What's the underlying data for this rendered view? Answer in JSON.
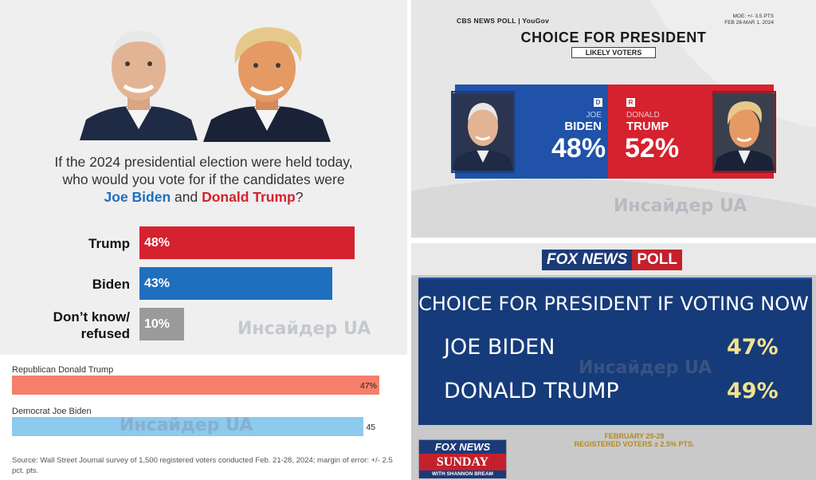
{
  "watermark": "Инсайдер UA",
  "colors": {
    "trump_red": "#d6212e",
    "biden_blue": "#1f6fbf",
    "undecided_gray": "#9a9a9a",
    "wsj_trump": "#f57f6a",
    "wsj_biden": "#8ec9ee",
    "cbs_blue": "#1f52a8",
    "cbs_red": "#d6212e",
    "fox_navy": "#163b7a",
    "fox_gold": "#f2e38f"
  },
  "icons": [
    "biden-portrait-icon",
    "trump-portrait-icon"
  ],
  "chart_data": [
    {
      "type": "bar",
      "question": {
        "line1": "If the 2024 presidential election were held today,",
        "line2": "who would you vote for if the candidates were",
        "biden": "Joe Biden",
        "and": "and",
        "trump": "Donald Trump",
        "qmark": "?"
      },
      "categories": [
        "Trump",
        "Biden",
        "Don’t know/\nrefused"
      ],
      "values": [
        48,
        43,
        10
      ],
      "value_labels": [
        "48%",
        "43%",
        "10%"
      ],
      "ylim": [
        0,
        50
      ]
    },
    {
      "type": "bar",
      "categories": [
        "Republican Donald Trump",
        "Democrat Joe Biden"
      ],
      "values": [
        47,
        45
      ],
      "value_labels": [
        "47%",
        "45"
      ],
      "xlim": [
        0,
        50
      ],
      "source": "Source: Wall Street Journal survey of 1,500 registered voters conducted Feb. 21-28, 2024; margin of error: +/- 2.5 pct. pts."
    },
    {
      "type": "bar",
      "brand": "CBS NEWS POLL | YouGov",
      "moe": "MOE: +/- 3.5 PTS",
      "dates": "FEB 28-MAR 1, 2024",
      "title": "CHOICE FOR PRESIDENT",
      "subtitle": "LIKELY VOTERS",
      "categories": [
        "JOE BIDEN",
        "DONALD TRUMP"
      ],
      "first_names": [
        "JOE",
        "DONALD"
      ],
      "last_names": [
        "BIDEN",
        "TRUMP"
      ],
      "parties": [
        "D",
        "R"
      ],
      "values": [
        48,
        52
      ],
      "value_labels": [
        "48%",
        "52%"
      ]
    },
    {
      "type": "table",
      "logo_left": "FOX NEWS",
      "logo_right": "POLL",
      "title": "CHOICE FOR PRESIDENT IF VOTING NOW",
      "categories": [
        "JOE BIDEN",
        "DONALD TRUMP"
      ],
      "values": [
        47,
        49
      ],
      "value_labels": [
        "47%",
        "49%"
      ],
      "footer_line1": "FEBRUARY 25-28",
      "footer_line2": "REGISTERED VOTERS ± 2.5% PTS.",
      "show": {
        "top": "FOX NEWS",
        "mid": "SUNDAY",
        "bot": "WITH SHANNON BREAM"
      }
    }
  ]
}
